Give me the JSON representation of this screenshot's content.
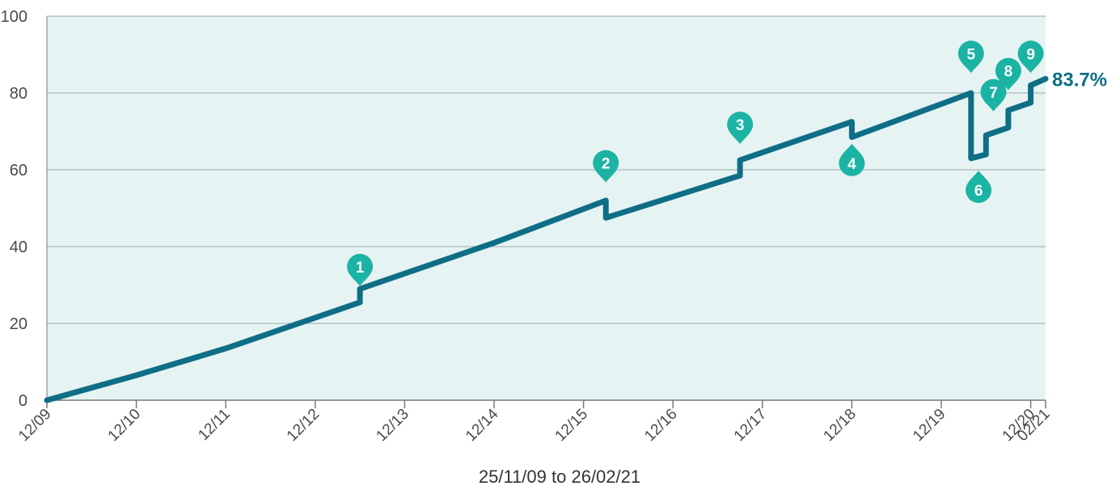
{
  "chart_data": {
    "type": "line",
    "xlabel": "25/11/09 to 26/02/21",
    "ylabel": "",
    "ylim": [
      0,
      100
    ],
    "y_ticks": [
      "0",
      "20",
      "40",
      "60",
      "80",
      "100"
    ],
    "x_ticks": [
      {
        "label": "12/09",
        "x": "2009-12"
      },
      {
        "label": "12/10",
        "x": "2010-12"
      },
      {
        "label": "12/11",
        "x": "2011-12"
      },
      {
        "label": "12/12",
        "x": "2012-12"
      },
      {
        "label": "12/13",
        "x": "2013-12"
      },
      {
        "label": "12/14",
        "x": "2014-12"
      },
      {
        "label": "12/15",
        "x": "2015-12"
      },
      {
        "label": "12/16",
        "x": "2016-12"
      },
      {
        "label": "12/17",
        "x": "2017-12"
      },
      {
        "label": "12/18",
        "x": "2018-12"
      },
      {
        "label": "12/19",
        "x": "2019-12"
      },
      {
        "label": "12/20",
        "x": "2020-12"
      },
      {
        "label": "02/21",
        "x": "2021-02"
      }
    ],
    "grid": "horizontal",
    "colors": {
      "line": "#0e6e86",
      "marker": "#1bb3a4",
      "plot_background": "#e6f3f3",
      "grid": "#9aa8ab"
    },
    "end_label": "83.7%",
    "series": [
      {
        "points": [
          {
            "x": "2009-12",
            "y": 0
          },
          {
            "x": "2010-12",
            "y": 6.5
          },
          {
            "x": "2011-12",
            "y": 13.5
          },
          {
            "x": "2012-12",
            "y": 21.5
          },
          {
            "x": "2013-06",
            "y": 25.5
          },
          {
            "x": "2013-06",
            "y": 29
          },
          {
            "x": "2014-12",
            "y": 41
          },
          {
            "x": "2016-03",
            "y": 52
          },
          {
            "x": "2016-03",
            "y": 47.5
          },
          {
            "x": "2017-09",
            "y": 58.5
          },
          {
            "x": "2017-09",
            "y": 62.5
          },
          {
            "x": "2018-12",
            "y": 72.5
          },
          {
            "x": "2018-12",
            "y": 68.5
          },
          {
            "x": "2020-04",
            "y": 80
          },
          {
            "x": "2020-04",
            "y": 63
          },
          {
            "x": "2020-06",
            "y": 64
          },
          {
            "x": "2020-06",
            "y": 69
          },
          {
            "x": "2020-09",
            "y": 71
          },
          {
            "x": "2020-09",
            "y": 75.5
          },
          {
            "x": "2020-12",
            "y": 77.5
          },
          {
            "x": "2020-12",
            "y": 82
          },
          {
            "x": "2021-02",
            "y": 83.7
          }
        ]
      }
    ],
    "annotations": [
      {
        "label": "1",
        "x": "2013-06",
        "y": 33.5,
        "position": "above"
      },
      {
        "label": "2",
        "x": "2016-03",
        "y": 60.5,
        "position": "above"
      },
      {
        "label": "3",
        "x": "2017-09",
        "y": 70.5,
        "position": "above"
      },
      {
        "label": "4",
        "x": "2018-12",
        "y": 63,
        "position": "below"
      },
      {
        "label": "5",
        "x": "2020-04",
        "y": 89,
        "position": "above"
      },
      {
        "label": "6",
        "x": "2020-05",
        "y": 56,
        "position": "below"
      },
      {
        "label": "7",
        "x": "2020-07",
        "y": 79,
        "position": "above"
      },
      {
        "label": "8",
        "x": "2020-09",
        "y": 84.5,
        "position": "above"
      },
      {
        "label": "9",
        "x": "2020-12",
        "y": 89,
        "position": "above"
      }
    ]
  }
}
